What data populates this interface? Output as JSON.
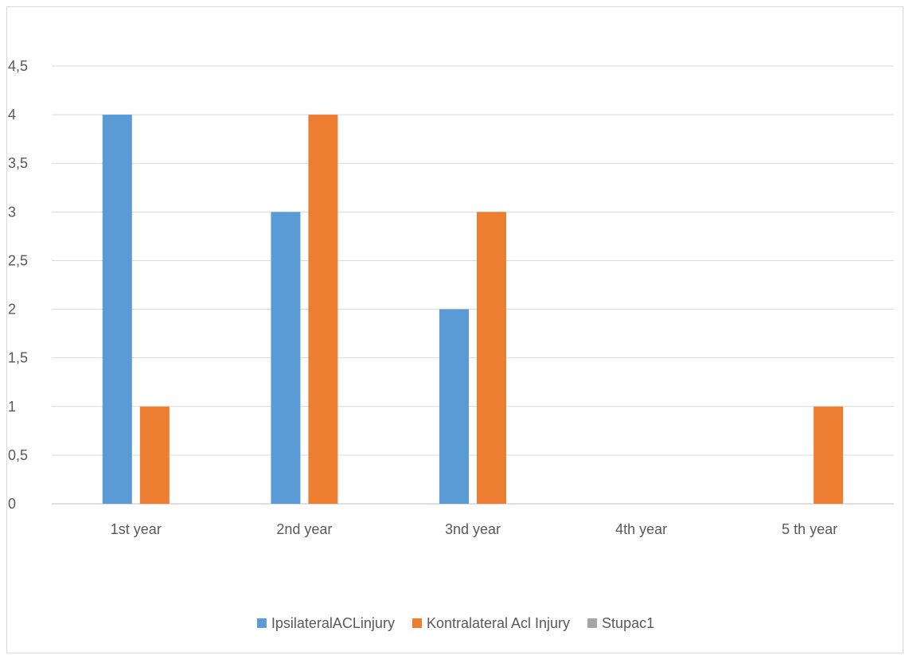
{
  "chart_data": {
    "type": "bar",
    "title": "",
    "xlabel": "",
    "ylabel": "",
    "categories": [
      "1st year",
      "2nd year",
      "3nd year",
      "4th year",
      "5 th year"
    ],
    "series": [
      {
        "name": "IpsilateralACLinjury",
        "color": "#5b9bd5",
        "values": [
          4,
          3,
          2,
          0,
          0
        ]
      },
      {
        "name": "Kontralateral Acl Injury",
        "color": "#ed7d31",
        "values": [
          1,
          4,
          3,
          0,
          1
        ]
      },
      {
        "name": "Stupac1",
        "color": "#a5a5a5",
        "values": [
          0,
          0,
          0,
          0,
          0
        ]
      }
    ],
    "ylim": [
      0,
      4.5
    ],
    "yticks": [
      "0",
      "0,5",
      "1",
      "1,5",
      "2",
      "2,5",
      "3",
      "3,5",
      "4",
      "4,5"
    ],
    "grid": true,
    "legend_position": "bottom"
  }
}
